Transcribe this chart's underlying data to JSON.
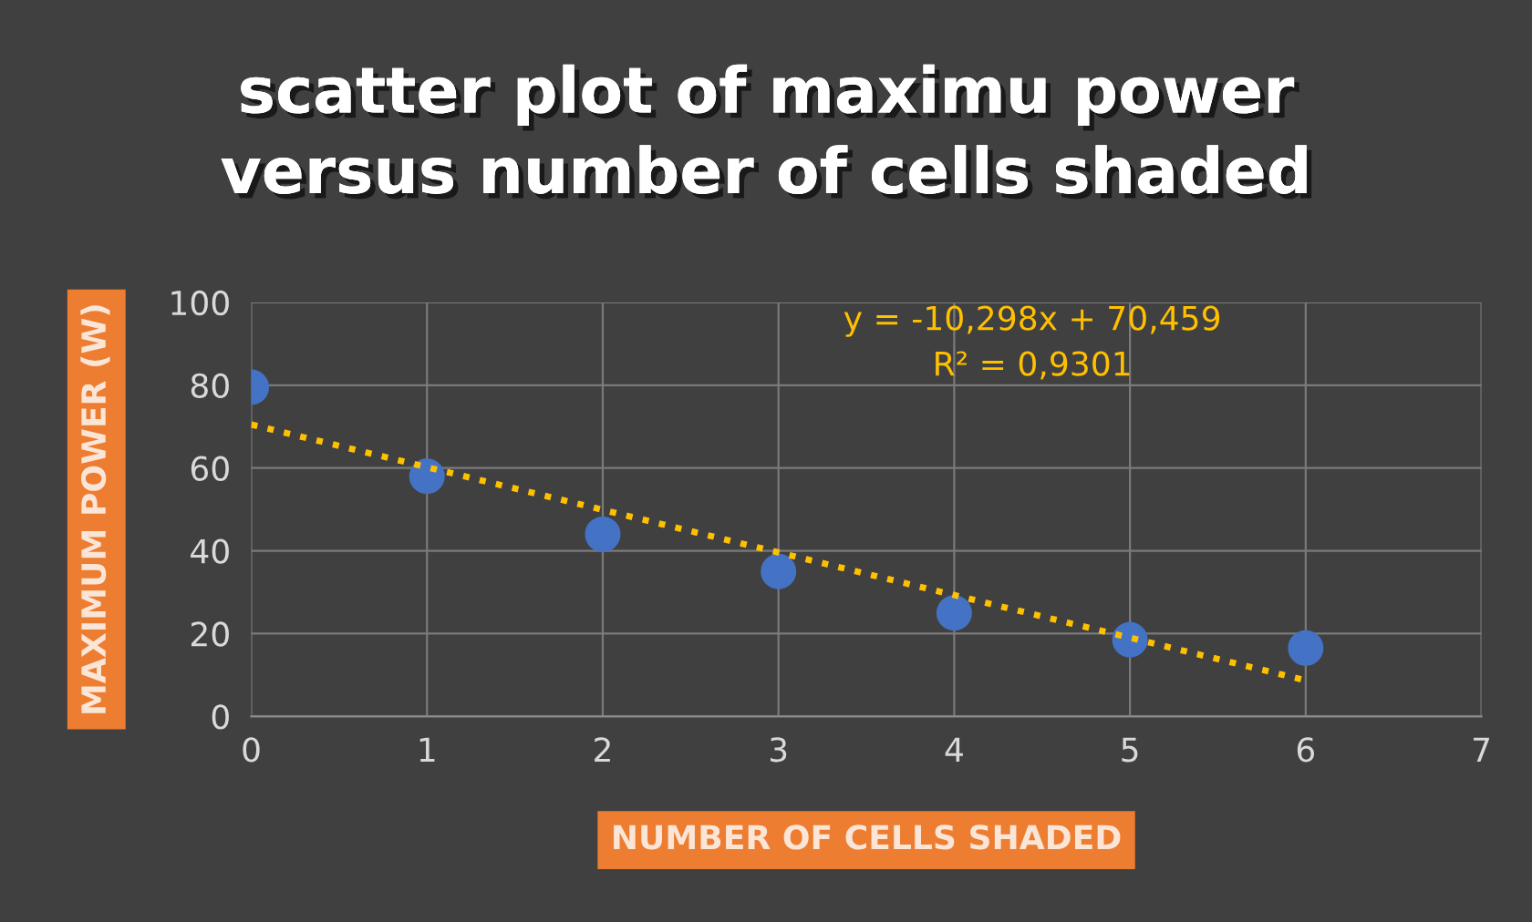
{
  "chart_data": {
    "type": "scatter",
    "title": "scatter plot of maximu power\nversus number of cells shaded",
    "xlabel": "NUMBER OF CELLS SHADED",
    "ylabel": "MAXIMUM POWER (W)",
    "series": [
      {
        "color": "#4472c4",
        "marker": "circle",
        "x": [
          0,
          1,
          2,
          3,
          4,
          5,
          6
        ],
        "values": [
          79.5,
          58,
          44,
          35,
          25,
          18.5,
          16.5
        ]
      },
      {
        "type": "line",
        "color": "#ffc000",
        "line_style": "dotted",
        "marker": "none",
        "x": [
          0,
          6
        ],
        "values": [
          70.5,
          8.7
        ]
      }
    ],
    "annotations": [
      "y = -10,298x + 70,459",
      "R² = 0,9301"
    ],
    "xlim": [
      0,
      7
    ],
    "xticks": [
      0,
      1,
      2,
      3,
      4,
      5,
      6,
      7
    ],
    "ylim": [
      0,
      100
    ],
    "yticks": [
      0,
      20,
      40,
      60,
      80,
      100
    ],
    "grid": true,
    "legend": false
  }
}
